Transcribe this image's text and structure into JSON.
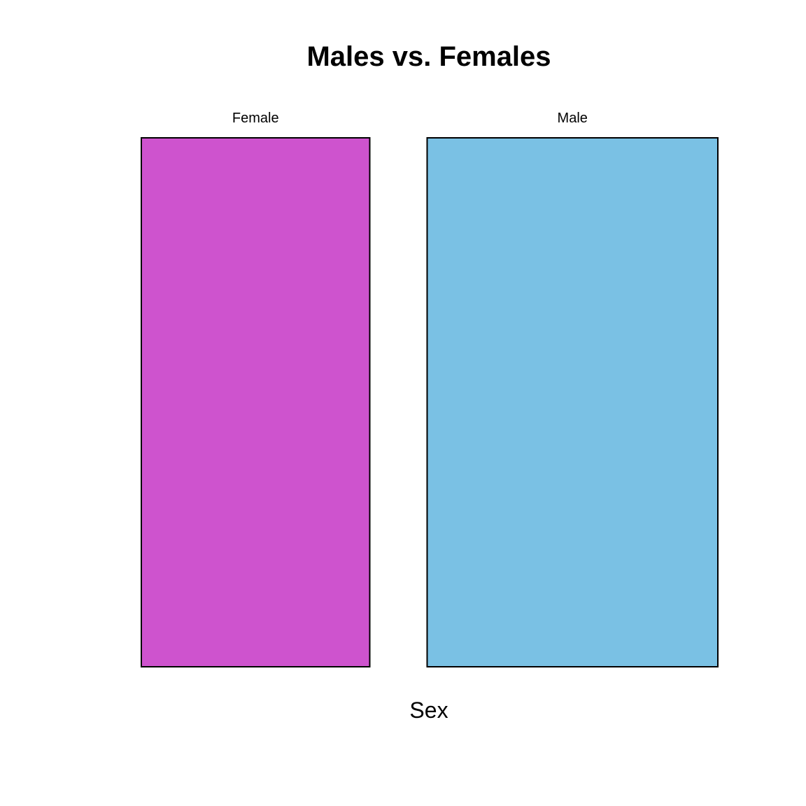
{
  "chart_data": {
    "type": "mosaic",
    "title": "Males vs. Females",
    "xlabel": "Sex",
    "categories": [
      "Female",
      "Male"
    ],
    "proportions": [
      0.44,
      0.56
    ],
    "colors": [
      "#CE53CE",
      "#7AC1E4"
    ],
    "grid": false,
    "legend": "none"
  }
}
